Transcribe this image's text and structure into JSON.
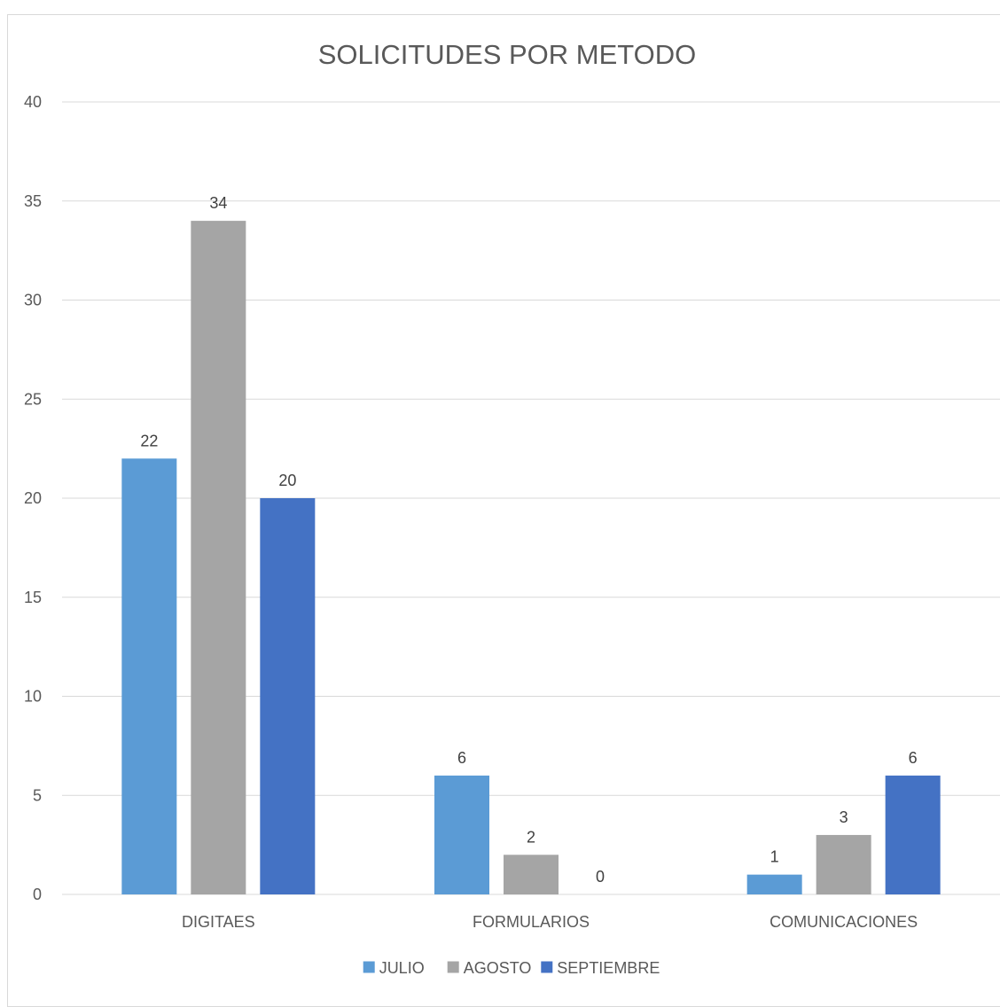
{
  "chart_data": {
    "type": "bar",
    "title": "SOLICITUDES POR METODO",
    "categories": [
      "DIGITAES",
      "FORMULARIOS",
      "COMUNICACIONES"
    ],
    "series": [
      {
        "name": "JULIO",
        "values": [
          22,
          6,
          1
        ],
        "color": "#5B9BD5"
      },
      {
        "name": "AGOSTO",
        "values": [
          34,
          2,
          3
        ],
        "color": "#A5A5A5"
      },
      {
        "name": "SEPTIEMBRE",
        "values": [
          20,
          0,
          6
        ],
        "color": "#4472C4"
      }
    ],
    "ylim": [
      0,
      40
    ],
    "yticks": [
      "0",
      "5",
      "10",
      "15",
      "20",
      "25",
      "30",
      "35",
      "40"
    ],
    "grid": true,
    "legend_position": "bottom",
    "data_labels": true
  }
}
